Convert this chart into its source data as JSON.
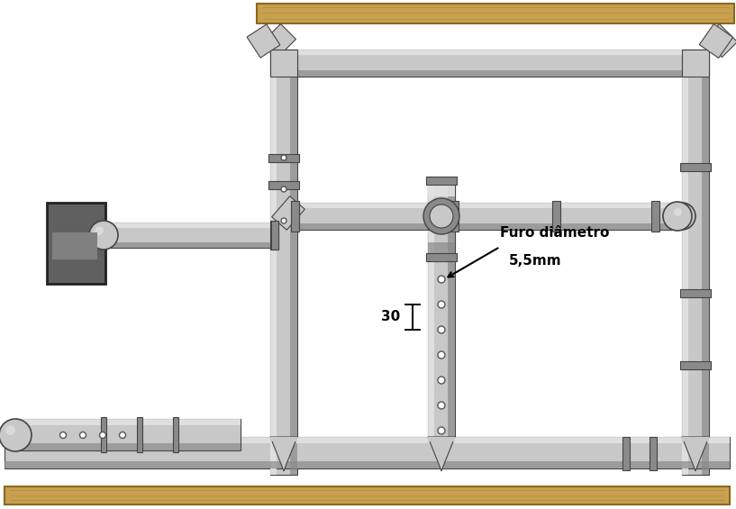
{
  "background_color": "#ffffff",
  "pipe_fill": "#c8c8c8",
  "pipe_light": "#e2e2e2",
  "pipe_dark": "#8a8a8a",
  "pipe_edge": "#444444",
  "wood_fill": "#c8a050",
  "wood_dark": "#8a6820",
  "motor_fill": "#606060",
  "motor_edge": "#222222",
  "ann_line1": "Furo diâmetro",
  "ann_line2": "5,5mm",
  "dim_text": "30",
  "figsize": [
    8.17,
    5.65
  ],
  "dpi": 100
}
